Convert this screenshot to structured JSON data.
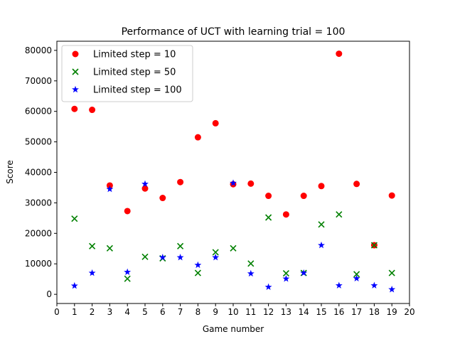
{
  "chart_data": {
    "type": "scatter",
    "title": "Performance of UCT with learning trial = 100",
    "xlabel": "Game number",
    "ylabel": "Score",
    "xlim": [
      0,
      20
    ],
    "ylim": [
      -3000,
      83000
    ],
    "x_ticks": [
      "0",
      "1",
      "2",
      "3",
      "4",
      "5",
      "6",
      "7",
      "8",
      "9",
      "10",
      "11",
      "12",
      "13",
      "14",
      "15",
      "16",
      "17",
      "18",
      "19",
      "20"
    ],
    "y_ticks": [
      "0",
      "10000",
      "20000",
      "30000",
      "40000",
      "50000",
      "60000",
      "70000",
      "80000"
    ],
    "grid": false,
    "legend_position": "top-left",
    "x": [
      1,
      2,
      3,
      4,
      5,
      6,
      7,
      8,
      9,
      10,
      11,
      12,
      13,
      14,
      15,
      16,
      17,
      18,
      19
    ],
    "series": [
      {
        "name": "Limited step = 10",
        "marker": "circle",
        "color": "#ff0000",
        "values": [
          60800,
          60500,
          35700,
          27300,
          34700,
          31600,
          36800,
          51500,
          56100,
          36100,
          36300,
          32300,
          26200,
          32300,
          35500,
          78900,
          36200,
          16100,
          32400
        ]
      },
      {
        "name": "Limited step = 50",
        "marker": "x",
        "color": "#008000",
        "values": [
          24800,
          15800,
          15100,
          5100,
          12300,
          11800,
          15800,
          7000,
          13800,
          15100,
          10100,
          25200,
          6900,
          7000,
          22900,
          26200,
          6600,
          16100,
          7000
        ]
      },
      {
        "name": "Limited step = 100",
        "marker": "star",
        "color": "#0000ff",
        "values": [
          2800,
          7000,
          34500,
          7300,
          36200,
          12100,
          12100,
          9600,
          12100,
          36500,
          6800,
          2400,
          5100,
          7000,
          16100,
          2900,
          5200,
          2900,
          1600
        ]
      }
    ]
  }
}
